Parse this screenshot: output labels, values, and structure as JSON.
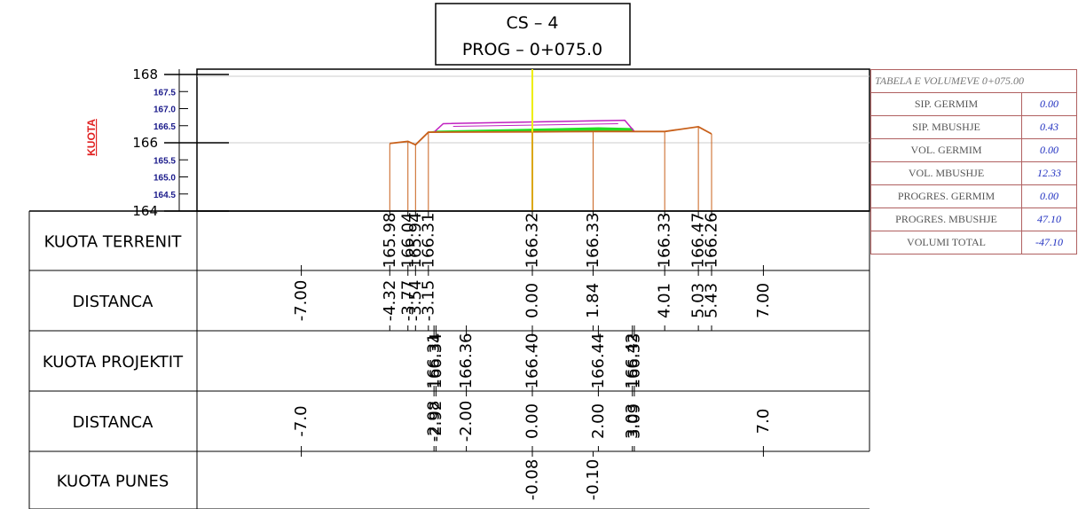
{
  "header": {
    "cs_label": "CS  –  4",
    "prog_label": "PROG  –  0+075.0"
  },
  "axis": {
    "title": "KUOTA",
    "major_ticks": [
      "168",
      "166",
      "164"
    ],
    "minor_ticks": [
      "167.5",
      "167.0",
      "166.5",
      "165.5",
      "165.0",
      "164.5"
    ]
  },
  "row_labels": [
    "KUOTA TERRENIT",
    "DISTANCA",
    "KUOTA PROJEKTIT",
    "DISTANCA",
    "KUOTA PUNES"
  ],
  "terrain_points": [
    {
      "dist": -4.32,
      "dist_label": "-4.32",
      "elev": 165.98,
      "elev_label": "165.98"
    },
    {
      "dist": -3.77,
      "dist_label": "-3.77",
      "elev": 166.04,
      "elev_label": "166.04"
    },
    {
      "dist": -3.54,
      "dist_label": "-3.54",
      "elev": 165.94,
      "elev_label": "165.94"
    },
    {
      "dist": -3.15,
      "dist_label": "-3.15",
      "elev": 166.31,
      "elev_label": "166.31"
    },
    {
      "dist": 0.0,
      "dist_label": "0.00",
      "elev": 166.32,
      "elev_label": "166.32"
    },
    {
      "dist": 1.84,
      "dist_label": "1.84",
      "elev": 166.33,
      "elev_label": "166.33"
    },
    {
      "dist": 4.01,
      "dist_label": "4.01",
      "elev": 166.33,
      "elev_label": "166.33"
    },
    {
      "dist": 5.03,
      "dist_label": "5.03",
      "elev": 166.47,
      "elev_label": "166.47"
    },
    {
      "dist": 5.43,
      "dist_label": "5.43",
      "elev": 166.26,
      "elev_label": "166.26"
    }
  ],
  "terrain_extent_labels": [
    "-7.00",
    "7.00"
  ],
  "design_points": [
    {
      "dist": -2.98,
      "dist_label": "-2.98",
      "elev": 166.31,
      "elev_label": "166.31"
    },
    {
      "dist": -2.92,
      "dist_label": "-2.92",
      "elev": 166.34,
      "elev_label": "166.34"
    },
    {
      "dist": -2.0,
      "dist_label": "-2.00",
      "elev": 166.36,
      "elev_label": "166.36"
    },
    {
      "dist": 0.0,
      "dist_label": "0.00",
      "elev": 166.4,
      "elev_label": "166.40"
    },
    {
      "dist": 2.0,
      "dist_label": "2.00",
      "elev": 166.44,
      "elev_label": "166.44"
    },
    {
      "dist": 3.03,
      "dist_label": "3.03",
      "elev": 166.42,
      "elev_label": "166.42"
    },
    {
      "dist": 3.09,
      "dist_label": "3.09",
      "elev": 166.33,
      "elev_label": "166.33"
    }
  ],
  "design_extent_labels": [
    "-7.0",
    "7.0"
  ],
  "work_heights": [
    {
      "dist": 0.0,
      "label": "-0.08"
    },
    {
      "dist": 1.84,
      "label": "-0.10"
    }
  ],
  "colors": {
    "terrain": "#c8601a",
    "fill": "#22dd22",
    "design": "#c020c0",
    "centerline": "#eeee00",
    "axis_title": "#e02020",
    "tick_minor": "#1a1a8a",
    "table_border": "#b06060",
    "table_value": "#2030c0"
  },
  "volume_table": {
    "title": "TABELA E VOLUMEVE 0+075.00",
    "rows": [
      {
        "label": "SIP. GERMIM",
        "value": "0.00"
      },
      {
        "label": "SIP. MBUSHJE",
        "value": "0.43"
      },
      {
        "label": "VOL. GERMIM",
        "value": "0.00"
      },
      {
        "label": "VOL. MBUSHJE",
        "value": "12.33"
      },
      {
        "label": "PROGRES. GERMIM",
        "value": "0.00"
      },
      {
        "label": "PROGRES. MBUSHJE",
        "value": "47.10"
      },
      {
        "label": "VOLUMI TOTAL",
        "value": "-47.10"
      }
    ]
  }
}
